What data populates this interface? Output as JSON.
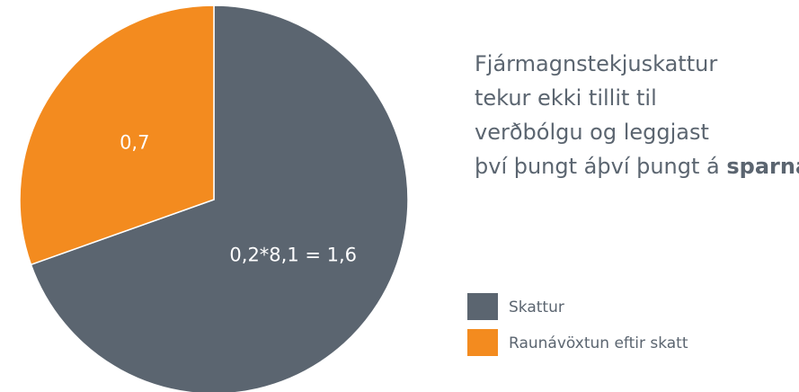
{
  "chart_data": {
    "type": "pie",
    "title_lines": [
      "Fjármagnstekjuskattur",
      "tekur ekki tillit til",
      "verðbólgu og leggjast",
      "því þungt á"
    ],
    "title_bold": "sparnað",
    "categories": [
      "Skattur",
      "Raunávöxtun eftir skatt"
    ],
    "values": [
      1.6,
      0.7
    ],
    "value_labels": [
      "0,2*8,1 = 1,6",
      "0,7"
    ],
    "colors": [
      "#5b6570",
      "#f38b1f"
    ],
    "legend": "right"
  }
}
